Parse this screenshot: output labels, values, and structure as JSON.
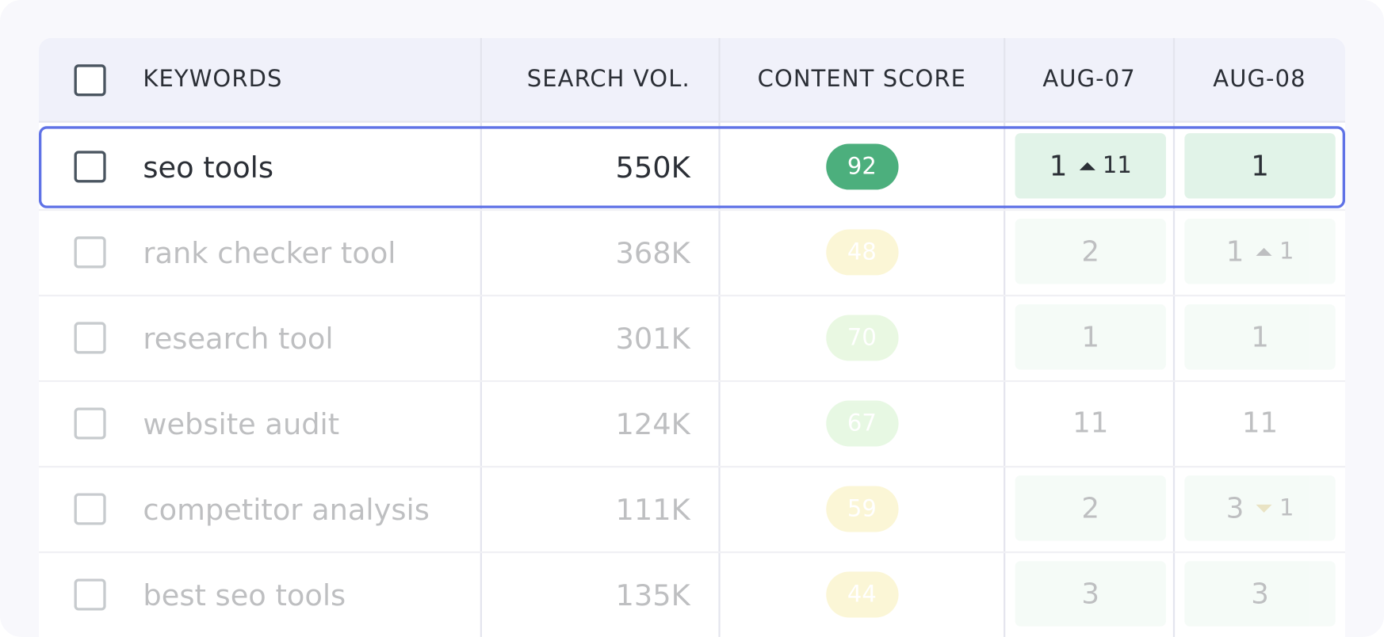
{
  "table": {
    "headers": [
      "KEYWORDS",
      "SEARCH VOL.",
      "CONTENT SCORE",
      "AUG-07",
      "AUG-08"
    ],
    "rows": [
      {
        "keyword": "seo tools",
        "volume": "550K",
        "score": 92,
        "score_color": "#4caf7d",
        "selected": true,
        "ranks": [
          {
            "rank": 1,
            "change": 11,
            "direction": "up",
            "highlight": true
          },
          {
            "rank": 1,
            "highlight": true
          }
        ]
      },
      {
        "keyword": "rank checker tool",
        "volume": "368K",
        "score": 48,
        "score_color": "#f5e37a",
        "ranks": [
          {
            "rank": 2,
            "highlight": true
          },
          {
            "rank": 1,
            "change": 1,
            "direction": "up",
            "highlight": true
          }
        ]
      },
      {
        "keyword": "research tool",
        "volume": "301K",
        "score": 70,
        "score_color": "#b8eba0",
        "ranks": [
          {
            "rank": 1,
            "highlight": true
          },
          {
            "rank": 1,
            "highlight": true
          }
        ]
      },
      {
        "keyword": "website audit",
        "volume": "124K",
        "score": 67,
        "score_color": "#b3e9a4",
        "ranks": [
          {
            "rank": 11,
            "highlight": false
          },
          {
            "rank": 11,
            "highlight": false
          }
        ]
      },
      {
        "keyword": "competitor analysis",
        "volume": "111K",
        "score": 59,
        "score_color": "#f5e37a",
        "ranks": [
          {
            "rank": 2,
            "highlight": true
          },
          {
            "rank": 3,
            "change": 1,
            "direction": "down",
            "highlight": true
          }
        ]
      },
      {
        "keyword": "best seo tools",
        "volume": "135K",
        "score": 44,
        "score_color": "#f5e37a",
        "ranks": [
          {
            "rank": 3,
            "highlight": true
          },
          {
            "rank": 3,
            "highlight": true
          }
        ]
      }
    ]
  }
}
